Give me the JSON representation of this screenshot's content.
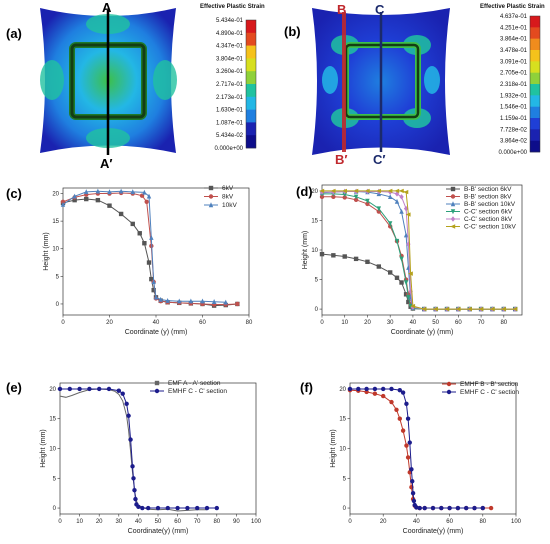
{
  "figure": {
    "panels": [
      {
        "id": "a",
        "label": "(a)",
        "type": "contour",
        "colorbar_title": "Effective Plastic Strain",
        "colorbar_labels": [
          "5.434e-01",
          "4.890e-01",
          "4.347e-01",
          "3.804e-01",
          "3.260e-01",
          "2.717e-01",
          "2.173e-01",
          "1.630e-01",
          "1.087e-01",
          "5.434e-02",
          "0.000e+00"
        ],
        "sections": [
          {
            "top": "A",
            "bottom": "A′",
            "color": "#000000"
          }
        ]
      },
      {
        "id": "b",
        "label": "(b)",
        "type": "contour",
        "colorbar_title": "Effective Plastic Strain",
        "colorbar_labels": [
          "4.637e-01",
          "4.251e-01",
          "3.864e-01",
          "3.478e-01",
          "3.091e-01",
          "2.705e-01",
          "2.318e-01",
          "1.932e-01",
          "1.546e-01",
          "1.159e-01",
          "7.728e-02",
          "3.864e-02",
          "0.000e+00"
        ],
        "sections": [
          {
            "top": "B",
            "bottom": "B′",
            "color": "#c0282d"
          },
          {
            "top": "C",
            "bottom": "C′",
            "color": "#1b2a6b"
          }
        ]
      }
    ],
    "colorbar_colors": [
      "#d7191c",
      "#e34a1f",
      "#f08c1d",
      "#f5c21b",
      "#d7df1f",
      "#8fd13a",
      "#3dbf4a",
      "#20c2a0",
      "#23b7e5",
      "#1f7fe0",
      "#1f3fd6",
      "#1a22b0",
      "#0d0d8a"
    ]
  },
  "chart_data": [
    {
      "id": "c",
      "label": "(c)",
      "type": "line",
      "xlabel": "Coordinate (y) (mm)",
      "ylabel": "Height (mm)",
      "xlim": [
        0,
        80
      ],
      "ylim": [
        -2,
        21
      ],
      "xticks": [
        "0",
        "20",
        "40",
        "60",
        "80"
      ],
      "yticks": [
        "0",
        "5",
        "10",
        "15",
        "20"
      ],
      "legend_position": "top-right",
      "series": [
        {
          "name": "6kV",
          "color": "#555555",
          "marker": "square",
          "x": [
            0,
            5,
            10,
            15,
            20,
            25,
            30,
            33,
            35,
            37,
            38,
            39,
            40,
            42,
            45,
            50,
            55,
            60,
            65,
            70,
            75
          ],
          "y": [
            18.3,
            18.8,
            19.0,
            18.8,
            17.8,
            16.3,
            14.5,
            12.8,
            11.0,
            7.5,
            4.5,
            2.5,
            1.2,
            0.6,
            0.3,
            0.2,
            0.1,
            0.0,
            -0.3,
            -0.2,
            0.0
          ]
        },
        {
          "name": "8kV",
          "color": "#c0504d",
          "marker": "circle",
          "x": [
            0,
            5,
            10,
            15,
            20,
            25,
            30,
            34,
            36,
            38,
            39,
            40,
            42,
            45,
            50,
            55,
            60,
            65,
            70,
            75
          ],
          "y": [
            18.5,
            19.3,
            19.8,
            20.0,
            20.0,
            20.1,
            20.0,
            19.6,
            18.5,
            10.5,
            4.0,
            1.0,
            0.5,
            0.3,
            0.2,
            0.1,
            0.0,
            -0.1,
            -0.1,
            0.0
          ]
        },
        {
          "name": "10kV",
          "color": "#4f81bd",
          "marker": "triangle",
          "x": [
            0,
            5,
            10,
            15,
            20,
            25,
            30,
            35,
            37,
            38,
            39,
            40,
            42,
            45,
            50,
            55,
            60,
            65,
            70
          ],
          "y": [
            18.0,
            19.5,
            20.3,
            20.4,
            20.3,
            20.4,
            20.3,
            20.2,
            19.5,
            12.0,
            4.0,
            1.2,
            0.8,
            0.6,
            0.5,
            0.5,
            0.5,
            0.4,
            0.3
          ]
        }
      ]
    },
    {
      "id": "d",
      "label": "(d)",
      "type": "line",
      "xlabel": "Coordinate (y) (mm)",
      "ylabel": "Height (mm)",
      "xlim": [
        0,
        88
      ],
      "ylim": [
        -1,
        21
      ],
      "xticks": [
        "0",
        "10",
        "20",
        "30",
        "40",
        "50",
        "60",
        "70",
        "80"
      ],
      "yticks": [
        "0",
        "5",
        "10",
        "15",
        "20"
      ],
      "legend_position": "top-right",
      "series": [
        {
          "name": "B-B' section 6kV",
          "color": "#555555",
          "marker": "square",
          "x": [
            0,
            5,
            10,
            15,
            20,
            25,
            30,
            33,
            35,
            37,
            38,
            39,
            40,
            45,
            50,
            55,
            60,
            65,
            70,
            75,
            80,
            85
          ],
          "y": [
            9.3,
            9.1,
            8.9,
            8.5,
            8.0,
            7.2,
            6.2,
            5.3,
            4.5,
            2.5,
            1.2,
            0.4,
            0.1,
            0,
            0,
            0,
            0,
            0,
            0,
            0,
            0,
            0
          ]
        },
        {
          "name": "B-B' section 8kV",
          "color": "#c0504d",
          "marker": "circle",
          "x": [
            0,
            5,
            10,
            15,
            20,
            25,
            30,
            33,
            35,
            37,
            38,
            39,
            40,
            45,
            50,
            55,
            60,
            65,
            70,
            75,
            80,
            85
          ],
          "y": [
            19.0,
            19.0,
            18.9,
            18.5,
            17.8,
            16.5,
            14.0,
            11.5,
            9.0,
            5.0,
            2.5,
            0.8,
            0.1,
            0,
            0,
            0,
            0,
            0,
            0,
            0,
            0,
            0
          ]
        },
        {
          "name": "B-B' section 10kV",
          "color": "#4f81bd",
          "marker": "triangle",
          "x": [
            0,
            5,
            10,
            15,
            20,
            25,
            30,
            33,
            35,
            37,
            38,
            39,
            40,
            45,
            50,
            55,
            60,
            65,
            70,
            75,
            80,
            85
          ],
          "y": [
            19.7,
            19.8,
            19.9,
            19.9,
            19.8,
            19.5,
            19.0,
            18.2,
            16.5,
            12.5,
            7.0,
            2.0,
            0.2,
            0,
            0,
            0,
            0,
            0,
            0,
            0,
            0,
            0
          ]
        },
        {
          "name": "C-C' section 6kV",
          "color": "#2ca07a",
          "marker": "triangle-down",
          "x": [
            0,
            5,
            10,
            15,
            20,
            25,
            30,
            33,
            35,
            37,
            38,
            39,
            40,
            45,
            50,
            55,
            60,
            65,
            70,
            75,
            80,
            85
          ],
          "y": [
            19.5,
            19.5,
            19.4,
            19.0,
            18.3,
            17.0,
            14.5,
            11.5,
            8.5,
            4.5,
            2.0,
            0.5,
            0.1,
            0,
            0,
            0,
            0,
            0,
            0,
            0,
            0,
            0
          ]
        },
        {
          "name": "C-C' section 8kV",
          "color": "#c080c8",
          "marker": "diamond",
          "x": [
            0,
            5,
            10,
            15,
            20,
            25,
            30,
            33,
            35,
            37,
            38,
            39,
            40,
            45,
            50,
            55,
            60,
            65,
            70,
            75,
            80,
            85
          ],
          "y": [
            19.8,
            19.8,
            19.9,
            19.9,
            19.9,
            19.9,
            19.8,
            19.5,
            19.0,
            17.0,
            11.0,
            3.0,
            0.3,
            0,
            0,
            0,
            0,
            0,
            0,
            0,
            0,
            0
          ]
        },
        {
          "name": "C-C' section 10kV",
          "color": "#b5a21c",
          "marker": "triangle-left",
          "x": [
            0,
            5,
            10,
            15,
            20,
            25,
            30,
            33,
            35,
            37,
            38,
            39,
            40,
            45,
            50,
            55,
            60,
            65,
            70,
            75,
            80,
            85
          ],
          "y": [
            20.0,
            20.0,
            20.0,
            20.0,
            20.0,
            20.0,
            20.0,
            20.0,
            20.0,
            19.8,
            16.0,
            6.0,
            0.5,
            0,
            0,
            0,
            0,
            0,
            0,
            0,
            0,
            0
          ]
        }
      ]
    },
    {
      "id": "e",
      "label": "(e)",
      "type": "line",
      "xlabel": "Coordinate(y) (mm)",
      "ylabel": "Height (mm)",
      "xlim": [
        0,
        100
      ],
      "ylim": [
        -1,
        21
      ],
      "xticks": [
        "0",
        "10",
        "20",
        "30",
        "40",
        "50",
        "60",
        "70",
        "80",
        "90",
        "100"
      ],
      "yticks": [
        "0",
        "5",
        "10",
        "15",
        "20"
      ],
      "legend_position": "top-right",
      "series": [
        {
          "name": "EMF     A - A' section",
          "color": "#666666",
          "marker": "none",
          "x": [
            0,
            3,
            6,
            10,
            15,
            20,
            25,
            28,
            30,
            32,
            34,
            35,
            36,
            37,
            38,
            39,
            40,
            42,
            45,
            50,
            55,
            60,
            65,
            70,
            75
          ],
          "y": [
            18.8,
            18.6,
            18.9,
            19.4,
            19.9,
            20.0,
            19.9,
            19.6,
            19.1,
            18.0,
            15.5,
            13.0,
            9.5,
            6.0,
            3.0,
            1.2,
            0.5,
            0.1,
            -0.2,
            -0.3,
            -0.2,
            -0.5,
            -0.4,
            -0.3,
            -0.3
          ]
        },
        {
          "name": "EMHF C - C' section",
          "color": "#1c1c8c",
          "marker": "circle",
          "x": [
            0,
            5,
            10,
            15,
            20,
            25,
            30,
            32,
            34,
            35,
            36,
            37,
            37.5,
            38,
            38.5,
            39,
            40,
            42,
            45,
            50,
            55,
            60,
            65,
            70,
            75,
            80
          ],
          "y": [
            20.0,
            20.0,
            20.0,
            20.0,
            20.0,
            20.0,
            19.7,
            19.2,
            17.5,
            15.5,
            11.5,
            7.0,
            5.0,
            3.0,
            1.5,
            0.6,
            0.2,
            0.0,
            0,
            0,
            0,
            0,
            0,
            0,
            0,
            0
          ]
        }
      ]
    },
    {
      "id": "f",
      "label": "(f)",
      "type": "line",
      "xlabel": "Coordinate(y) (mm)",
      "ylabel": "Height (mm)",
      "xlim": [
        0,
        100
      ],
      "ylim": [
        -1,
        21
      ],
      "xticks": [
        "0",
        "20",
        "40",
        "60",
        "80",
        "100"
      ],
      "yticks": [
        "0",
        "5",
        "10",
        "15",
        "20"
      ],
      "legend_position": "top-right",
      "series": [
        {
          "name": "EMHF B - B' section",
          "color": "#c0392b",
          "marker": "circle",
          "x": [
            0,
            5,
            10,
            15,
            20,
            25,
            28,
            30,
            32,
            34,
            35,
            36,
            37,
            38,
            39,
            40,
            42,
            45,
            50,
            55,
            60,
            65,
            70,
            75,
            80,
            85
          ],
          "y": [
            19.8,
            19.7,
            19.5,
            19.2,
            18.8,
            17.8,
            16.5,
            15.0,
            13.0,
            10.5,
            8.5,
            6.0,
            3.5,
            1.5,
            0.4,
            0.1,
            0,
            0,
            0,
            0,
            0,
            0,
            0,
            0,
            0,
            0
          ]
        },
        {
          "name": "EMHF C - C' section",
          "color": "#1c1c8c",
          "marker": "circle",
          "x": [
            0,
            5,
            10,
            15,
            20,
            25,
            30,
            32,
            34,
            35,
            36,
            37,
            37.5,
            38,
            38.5,
            39,
            40,
            42,
            45,
            50,
            55,
            60,
            65,
            70,
            75,
            80
          ],
          "y": [
            20.0,
            20.0,
            20.0,
            20.0,
            20.0,
            20.0,
            19.8,
            19.4,
            17.5,
            15.0,
            11.0,
            6.5,
            4.5,
            2.5,
            1.2,
            0.5,
            0.1,
            0,
            0,
            0,
            0,
            0,
            0,
            0,
            0,
            0
          ]
        }
      ]
    }
  ]
}
